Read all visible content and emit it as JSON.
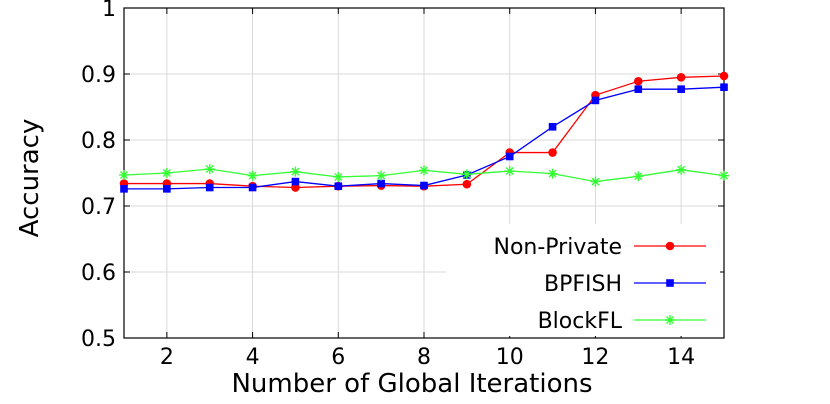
{
  "chart_data": {
    "type": "line",
    "title": "",
    "xlabel": "Number of Global Iterations",
    "ylabel": "Accuracy",
    "xlim": [
      1,
      15
    ],
    "ylim": [
      0.5,
      1.0
    ],
    "x_ticks": [
      2,
      4,
      6,
      8,
      10,
      12,
      14
    ],
    "y_ticks": [
      0.5,
      0.6,
      0.7,
      0.8,
      0.9,
      1.0
    ],
    "y_tick_labels": [
      "0.5",
      "0.6",
      "0.7",
      "0.8",
      "0.9",
      "1"
    ],
    "grid": true,
    "legend_position": "bottom-right",
    "x": [
      1,
      2,
      3,
      4,
      5,
      6,
      7,
      8,
      9,
      10,
      11,
      12,
      13,
      14,
      15
    ],
    "series": [
      {
        "name": "Non-Private",
        "color": "#ff0000",
        "marker": "circle",
        "values": [
          0.734,
          0.734,
          0.734,
          0.73,
          0.728,
          0.73,
          0.731,
          0.73,
          0.733,
          0.781,
          0.781,
          0.868,
          0.889,
          0.895,
          0.897
        ]
      },
      {
        "name": "BPFISH",
        "color": "#0000ff",
        "marker": "square",
        "values": [
          0.726,
          0.726,
          0.728,
          0.728,
          0.737,
          0.73,
          0.734,
          0.731,
          0.747,
          0.775,
          0.82,
          0.86,
          0.877,
          0.877,
          0.88
        ]
      },
      {
        "name": "BlockFL",
        "color": "#33ff33",
        "marker": "star",
        "values": [
          0.747,
          0.75,
          0.756,
          0.746,
          0.752,
          0.744,
          0.746,
          0.754,
          0.748,
          0.753,
          0.749,
          0.737,
          0.745,
          0.755,
          0.746
        ]
      }
    ]
  }
}
